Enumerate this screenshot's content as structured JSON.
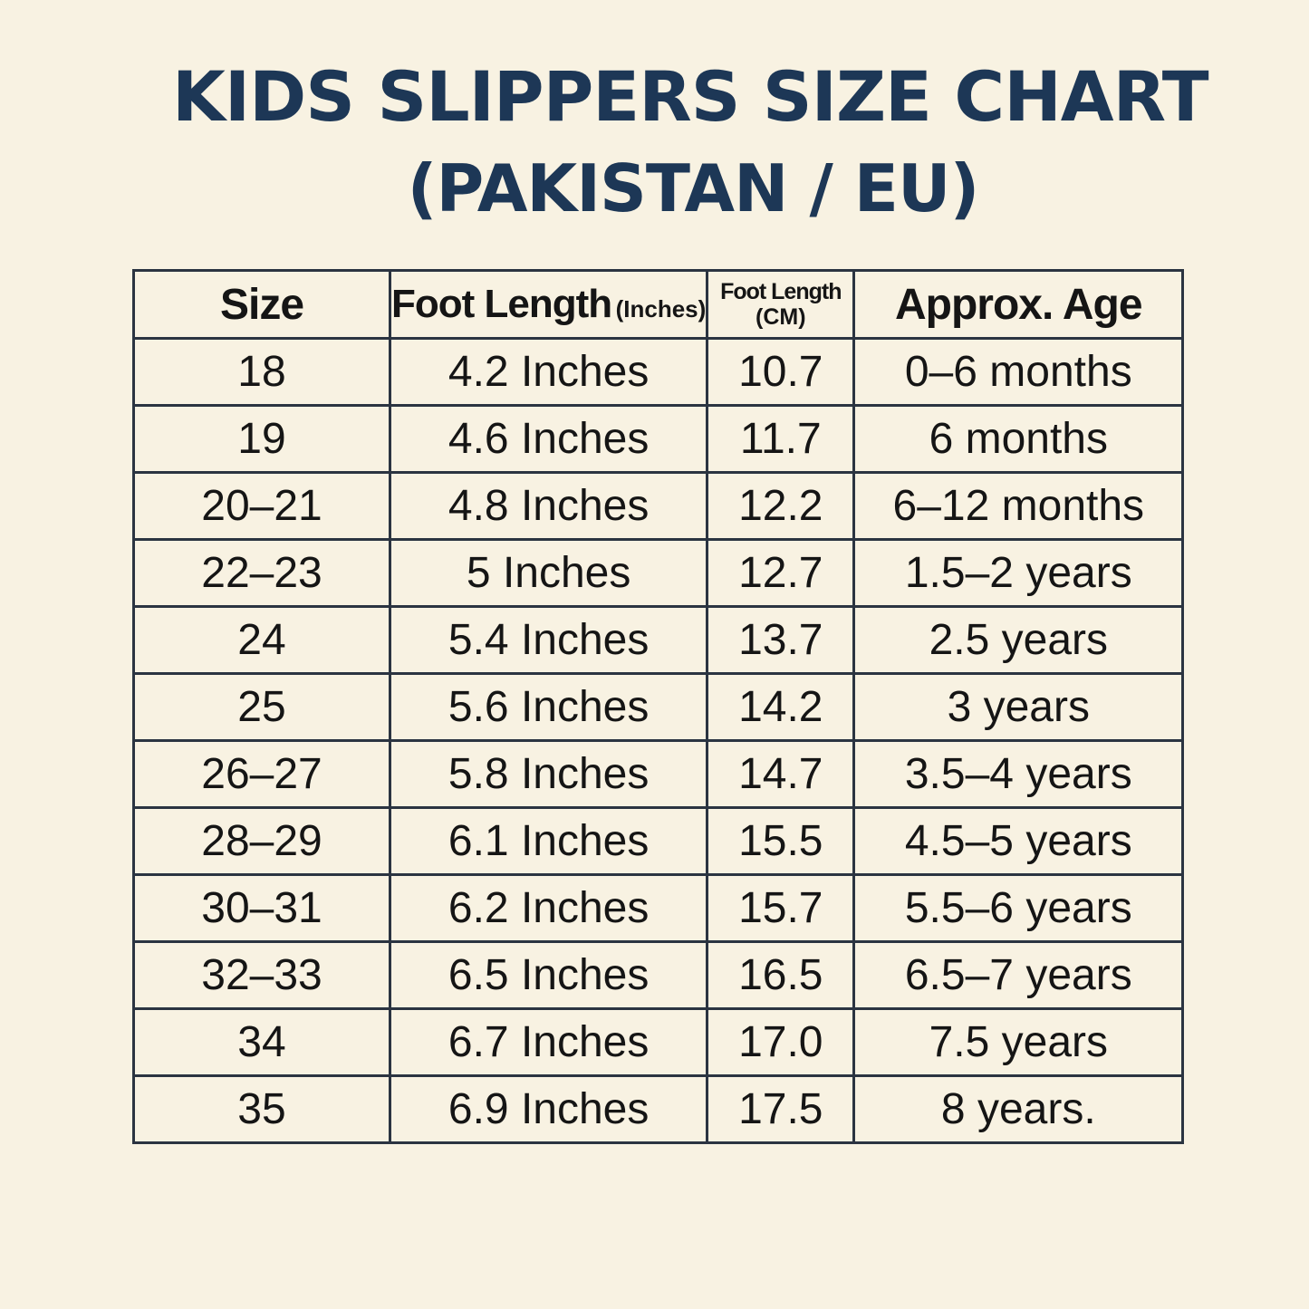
{
  "header": {
    "title": "KIDS SLIPPERS SIZE CHART",
    "subtitle": "(PAKISTAN / EU)"
  },
  "table": {
    "columns": [
      {
        "label": "Size"
      },
      {
        "label": "Foot Length",
        "unit": "(Inches)"
      },
      {
        "label": "Foot Length",
        "unit": "(CM)"
      },
      {
        "label": "Approx. Age"
      }
    ],
    "rows": [
      [
        "18",
        "4.2 Inches",
        "10.7",
        "0–6 months"
      ],
      [
        "19",
        "4.6 Inches",
        "11.7",
        "6 months"
      ],
      [
        "20–21",
        "4.8 Inches",
        "12.2",
        "6–12 months"
      ],
      [
        "22–23",
        "5 Inches",
        "12.7",
        "1.5–2 years"
      ],
      [
        "24",
        "5.4 Inches",
        "13.7",
        "2.5 years"
      ],
      [
        "25",
        "5.6 Inches",
        "14.2",
        "3 years"
      ],
      [
        "26–27",
        "5.8 Inches",
        "14.7",
        "3.5–4 years"
      ],
      [
        "28–29",
        "6.1 Inches",
        "15.5",
        "4.5–5 years"
      ],
      [
        "30–31",
        "6.2 Inches",
        "15.7",
        "5.5–6 years"
      ],
      [
        "32–33",
        "6.5 Inches",
        "16.5",
        "6.5–7 years"
      ],
      [
        "34",
        "6.7 Inches",
        "17.0",
        "7.5 years"
      ],
      [
        "35",
        "6.9 Inches",
        "17.5",
        "8 years."
      ]
    ]
  }
}
